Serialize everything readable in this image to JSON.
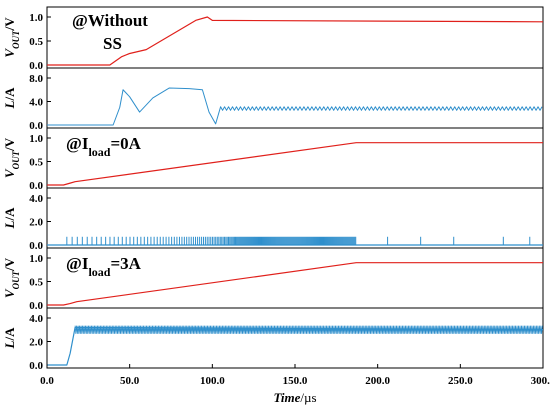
{
  "chart_data": [
    {
      "type": "line",
      "ylabel": "V_OUT/V",
      "annotation": "@Without SS",
      "ylim": [
        0,
        1.0
      ],
      "yticks": [
        "0.0",
        "0.5",
        "1.0"
      ],
      "color": "#e0201b",
      "series": [
        {
          "x": [
            0,
            38,
            45,
            50,
            60,
            90,
            97,
            100,
            300
          ],
          "y": [
            0.0,
            0.0,
            0.17,
            0.24,
            0.32,
            0.93,
            1.0,
            0.93,
            0.9
          ]
        }
      ]
    },
    {
      "type": "line",
      "ylabel": "L/A",
      "ylim": [
        0,
        8.0
      ],
      "yticks": [
        "0.0",
        "4.0",
        "8.0"
      ],
      "color": "#2f8fcc",
      "series": [
        {
          "x": [
            0,
            40,
            44,
            46,
            50,
            56,
            64,
            74,
            86,
            94,
            98,
            102,
            105,
            300
          ],
          "y": [
            0.0,
            0.0,
            3.0,
            6.0,
            4.8,
            2.2,
            4.6,
            6.3,
            6.2,
            6.0,
            2.2,
            0.2,
            2.8,
            2.7
          ]
        }
      ],
      "ripple": {
        "from": 105,
        "amplitude": 0.3
      }
    },
    {
      "type": "line",
      "ylabel": "V_OUT/V",
      "annotation_parts": [
        "@I",
        "load",
        "=0A"
      ],
      "ylim": [
        0,
        1.0
      ],
      "yticks": [
        "0.0",
        "0.5",
        "1.0"
      ],
      "color": "#e0201b",
      "series": [
        {
          "x": [
            0,
            10,
            14,
            17,
            187,
            300
          ],
          "y": [
            0.0,
            0.0,
            0.04,
            0.07,
            0.9,
            0.9
          ]
        }
      ]
    },
    {
      "type": "line",
      "ylabel": "L/A",
      "ylim": [
        0,
        4.0
      ],
      "yticks": [
        "0.0",
        "2.0",
        "4.0"
      ],
      "color": "#2f8fcc",
      "series": [
        {
          "x": [
            0,
            300
          ],
          "y": [
            0.0,
            0.0
          ]
        }
      ],
      "pulses": {
        "burst_from": 12,
        "burst_to": 187,
        "burst_height": 0.7,
        "sparse_x": [
          206,
          226,
          246,
          276,
          292
        ],
        "sparse_height": 0.7
      }
    },
    {
      "type": "line",
      "ylabel": "V_OUT/V",
      "annotation_parts": [
        "@I",
        "load",
        "=3A"
      ],
      "ylim": [
        0,
        1.0
      ],
      "yticks": [
        "0.0",
        "0.5",
        "1.0"
      ],
      "color": "#e0201b",
      "series": [
        {
          "x": [
            0,
            10,
            14,
            18,
            187,
            300
          ],
          "y": [
            0.0,
            0.0,
            0.03,
            0.07,
            0.9,
            0.9
          ]
        }
      ]
    },
    {
      "type": "line",
      "ylabel": "L/A",
      "ylim": [
        0,
        4.0
      ],
      "yticks": [
        "0.0",
        "2.0",
        "4.0"
      ],
      "color": "#2f8fcc",
      "series": [
        {
          "x": [
            0,
            12,
            14,
            17,
            300
          ],
          "y": [
            0.0,
            0.0,
            1.0,
            3.2,
            3.0
          ]
        }
      ],
      "band": {
        "from": 17,
        "to": 300,
        "center": 3.0,
        "amplitude": 0.35
      }
    }
  ],
  "xaxis": {
    "label_main": "Time",
    "label_unit": "/µs",
    "xlim": [
      0,
      300
    ],
    "ticks": [
      "0.0",
      "50.0",
      "100.0",
      "150.0",
      "200.0",
      "250.0",
      "300.0"
    ]
  }
}
